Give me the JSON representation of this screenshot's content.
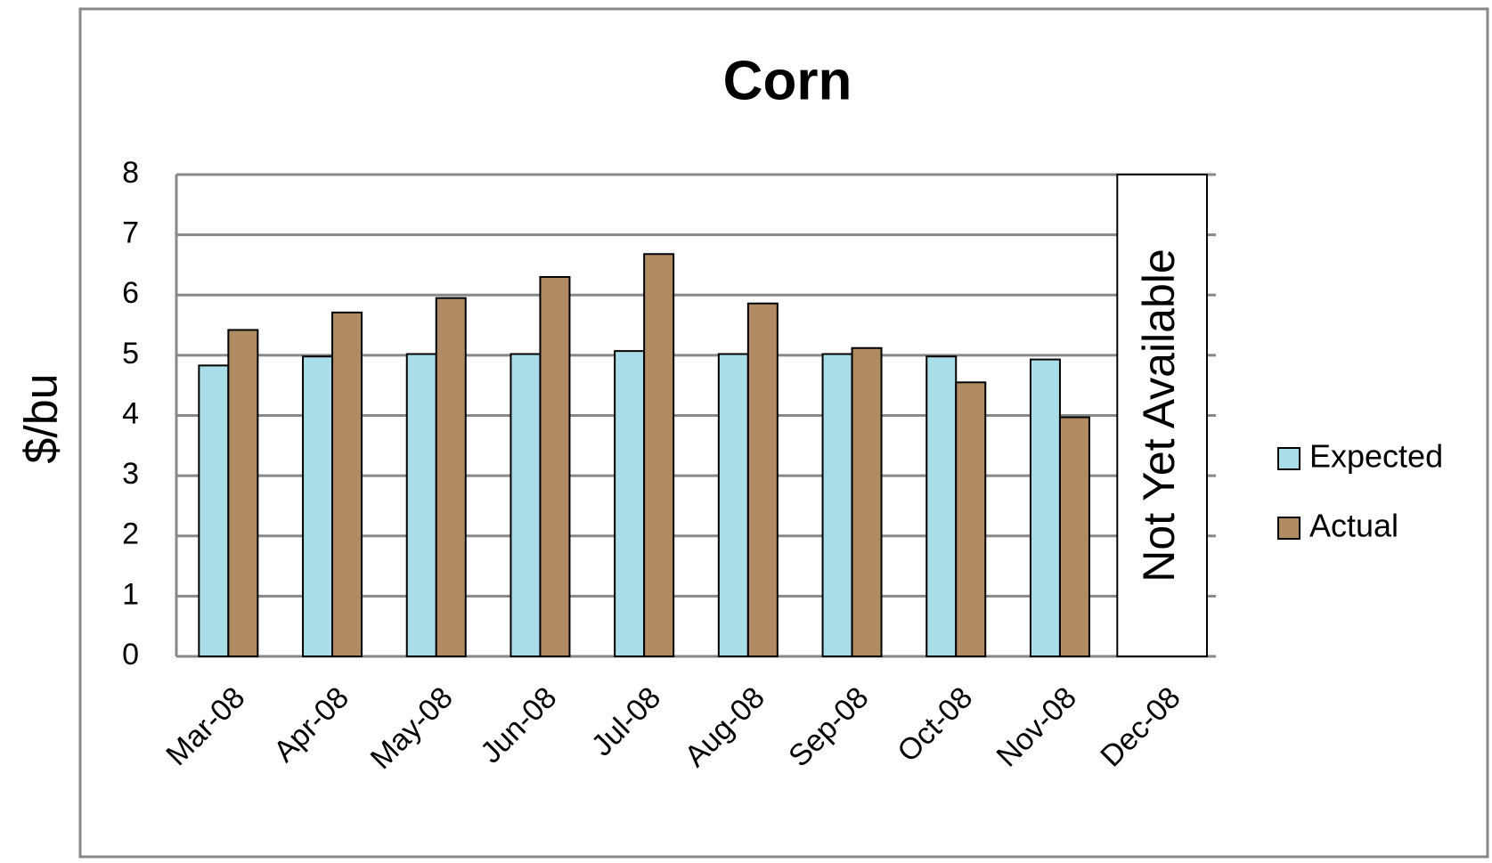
{
  "chart_data": {
    "type": "bar",
    "title": "Corn",
    "y_label": "$/bu",
    "categories": [
      "Mar-08",
      "Apr-08",
      "May-08",
      "Jun-08",
      "Jul-08",
      "Aug-08",
      "Sep-08",
      "Oct-08",
      "Nov-08",
      "Dec-08"
    ],
    "series": [
      {
        "name": "Expected",
        "color": "#a9dde8",
        "values": [
          4.83,
          4.98,
          5.02,
          5.02,
          5.07,
          5.02,
          5.02,
          4.98,
          4.93,
          null
        ]
      },
      {
        "name": "Actual",
        "color": "#b08b63",
        "values": [
          5.42,
          5.71,
          5.95,
          6.3,
          6.68,
          5.86,
          5.12,
          4.55,
          3.97,
          null
        ]
      }
    ],
    "ylim": [
      0,
      8
    ],
    "yticks": [
      0,
      1,
      2,
      3,
      4,
      5,
      6,
      7,
      8
    ],
    "grid": true,
    "legend": "right",
    "annotation": "Not Yet Available"
  }
}
